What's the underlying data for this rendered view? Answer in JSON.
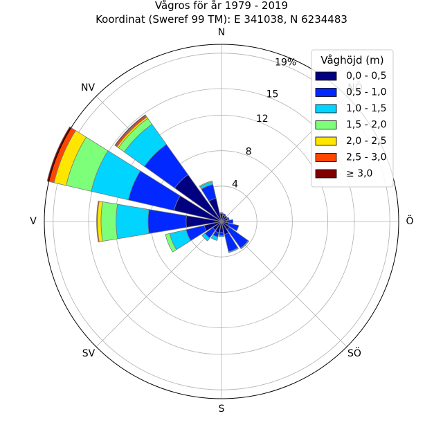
{
  "chart_data": {
    "type": "windrose",
    "title": "Vågros för år 1979 - 2019",
    "subtitle": "Koordinat (Sweref 99 TM): E 341038, N 6234483",
    "directions": [
      "N",
      "NNÖ",
      "NÖ",
      "ÖNÖ",
      "Ö",
      "ÖSÖ",
      "SÖ",
      "SSÖ",
      "S",
      "SSV",
      "SV",
      "VSV",
      "V",
      "VNV",
      "NV",
      "NNV"
    ],
    "direction_labels": {
      "N": "N",
      "NE": "NÖ",
      "E": "Ö",
      "SE": "SÖ",
      "S": "S",
      "SW": "SV",
      "W": "V",
      "NW": "NV"
    },
    "radial_ticks": [
      4,
      8,
      12,
      15,
      19
    ],
    "radial_tick_labels": [
      "4",
      "8",
      "12",
      "15",
      "19%"
    ],
    "rmax": 20,
    "legend_title": "Våghöjd (m)",
    "legend_position": "top-right",
    "grid": true,
    "series": [
      {
        "name": "0,0 - 0,5",
        "color": "#000080",
        "values": [
          0.9,
          0.7,
          0.7,
          0.7,
          0.6,
          0.8,
          1.1,
          1.5,
          1.2,
          1.3,
          1.2,
          2.0,
          4.0,
          5.5,
          6.5,
          2.7
        ]
      },
      {
        "name": "0,5 - 1,0",
        "color": "#0028ff",
        "values": [
          0.1,
          0.2,
          0.1,
          0.2,
          0.7,
          1.2,
          2.6,
          2.0,
          0.4,
          0.5,
          1.1,
          2.1,
          4.3,
          5.3,
          4.2,
          1.6
        ]
      },
      {
        "name": "1,0 - 1,5",
        "color": "#00d4ff",
        "values": [
          0.0,
          0.0,
          0.0,
          0.0,
          0.0,
          0.0,
          0.1,
          0.1,
          0.1,
          0.4,
          0.4,
          1.9,
          3.6,
          4.3,
          2.8,
          0.3
        ]
      },
      {
        "name": "1,5 - 2,0",
        "color": "#7dff7a",
        "values": [
          0.0,
          0.0,
          0.0,
          0.0,
          0.0,
          0.0,
          0.0,
          0.0,
          0.0,
          0.0,
          0.0,
          0.5,
          1.7,
          2.9,
          0.8,
          0.1
        ]
      },
      {
        "name": "2,0 - 2,5",
        "color": "#ffe600",
        "values": [
          0.0,
          0.0,
          0.0,
          0.0,
          0.0,
          0.0,
          0.0,
          0.0,
          0.0,
          0.0,
          0.0,
          0.0,
          0.4,
          1.4,
          0.2,
          0.0
        ]
      },
      {
        "name": "2,5 - 3,0",
        "color": "#ff4600",
        "values": [
          0.0,
          0.0,
          0.0,
          0.0,
          0.0,
          0.0,
          0.0,
          0.0,
          0.0,
          0.0,
          0.0,
          0.0,
          0.1,
          0.6,
          0.2,
          0.0
        ]
      },
      {
        "name": "≥ 3,0",
        "color": "#800000",
        "values": [
          0.0,
          0.0,
          0.0,
          0.0,
          0.0,
          0.0,
          0.0,
          0.0,
          0.0,
          0.0,
          0.0,
          0.0,
          0.0,
          0.2,
          0.1,
          0.0
        ]
      }
    ]
  }
}
